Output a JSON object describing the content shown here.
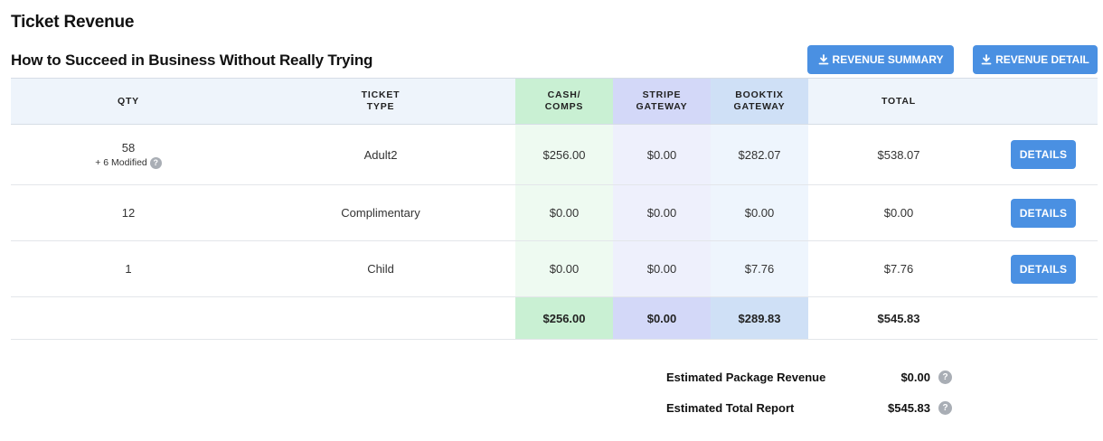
{
  "page": {
    "title": "Ticket Revenue",
    "show_title": "How to Succeed in Business Without Really Trying"
  },
  "buttons": {
    "revenue_summary": "REVENUE SUMMARY",
    "revenue_detail": "REVENUE DETAIL",
    "details": "DETAILS"
  },
  "table": {
    "headers": {
      "qty": "QTY",
      "ticket_line1": "TICKET",
      "ticket_line2": "TYPE",
      "cash_line1": "CASH/",
      "cash_line2": "COMPS",
      "stripe_line1": "STRIPE",
      "stripe_line2": "GATEWAY",
      "booktix_line1": "BOOKTIX",
      "booktix_line2": "GATEWAY",
      "total": "TOTAL"
    },
    "rows": [
      {
        "qty": "58",
        "modified": "+ 6 Modified",
        "type": "Adult2",
        "cash": "$256.00",
        "stripe": "$0.00",
        "booktix": "$282.07",
        "total": "$538.07"
      },
      {
        "qty": "12",
        "type": "Complimentary",
        "cash": "$0.00",
        "stripe": "$0.00",
        "booktix": "$0.00",
        "total": "$0.00"
      },
      {
        "qty": "1",
        "type": "Child",
        "cash": "$0.00",
        "stripe": "$0.00",
        "booktix": "$7.76",
        "total": "$7.76"
      }
    ],
    "totals": {
      "cash": "$256.00",
      "stripe": "$0.00",
      "booktix": "$289.83",
      "total": "$545.83"
    }
  },
  "summary": {
    "package_label": "Estimated Package Revenue",
    "package_value": "$0.00",
    "total_label": "Estimated Total Report",
    "total_value": "$545.83"
  },
  "icons": {
    "help": "?",
    "download": "download-icon"
  },
  "colors": {
    "accent": "#4a90e2",
    "cash": "#c9f0d3",
    "stripe": "#d3d8f8",
    "booktix": "#cfe0f6"
  }
}
